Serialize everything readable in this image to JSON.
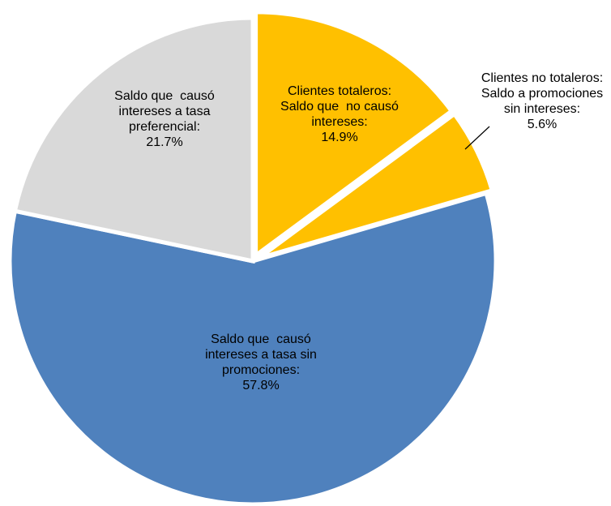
{
  "chart_data": {
    "type": "pie",
    "title": "",
    "slices": [
      {
        "value": 14.9,
        "label_lines": [
          "Clientes totaleros:",
          "Saldo que  no causó",
          "intereses:",
          "14.9%"
        ],
        "color": "#FFC000"
      },
      {
        "value": 5.6,
        "label_lines": [
          "Clientes no totaleros:",
          "Saldo a promociones",
          "sin intereses:",
          "5.6%"
        ],
        "color": "#FFC000"
      },
      {
        "value": 57.8,
        "label_lines": [
          "Saldo que  causó",
          "intereses a tasa sin",
          "promociones:",
          "57.8%"
        ],
        "color": "#4F81BD"
      },
      {
        "value": 21.7,
        "label_lines": [
          "Saldo que  causó",
          "intereses a tasa",
          "preferencial:",
          "21.7%"
        ],
        "color": "#D9D9D9"
      }
    ],
    "legend": "none",
    "start_angle": "12 o'clock, clockwise",
    "exploded": true
  }
}
